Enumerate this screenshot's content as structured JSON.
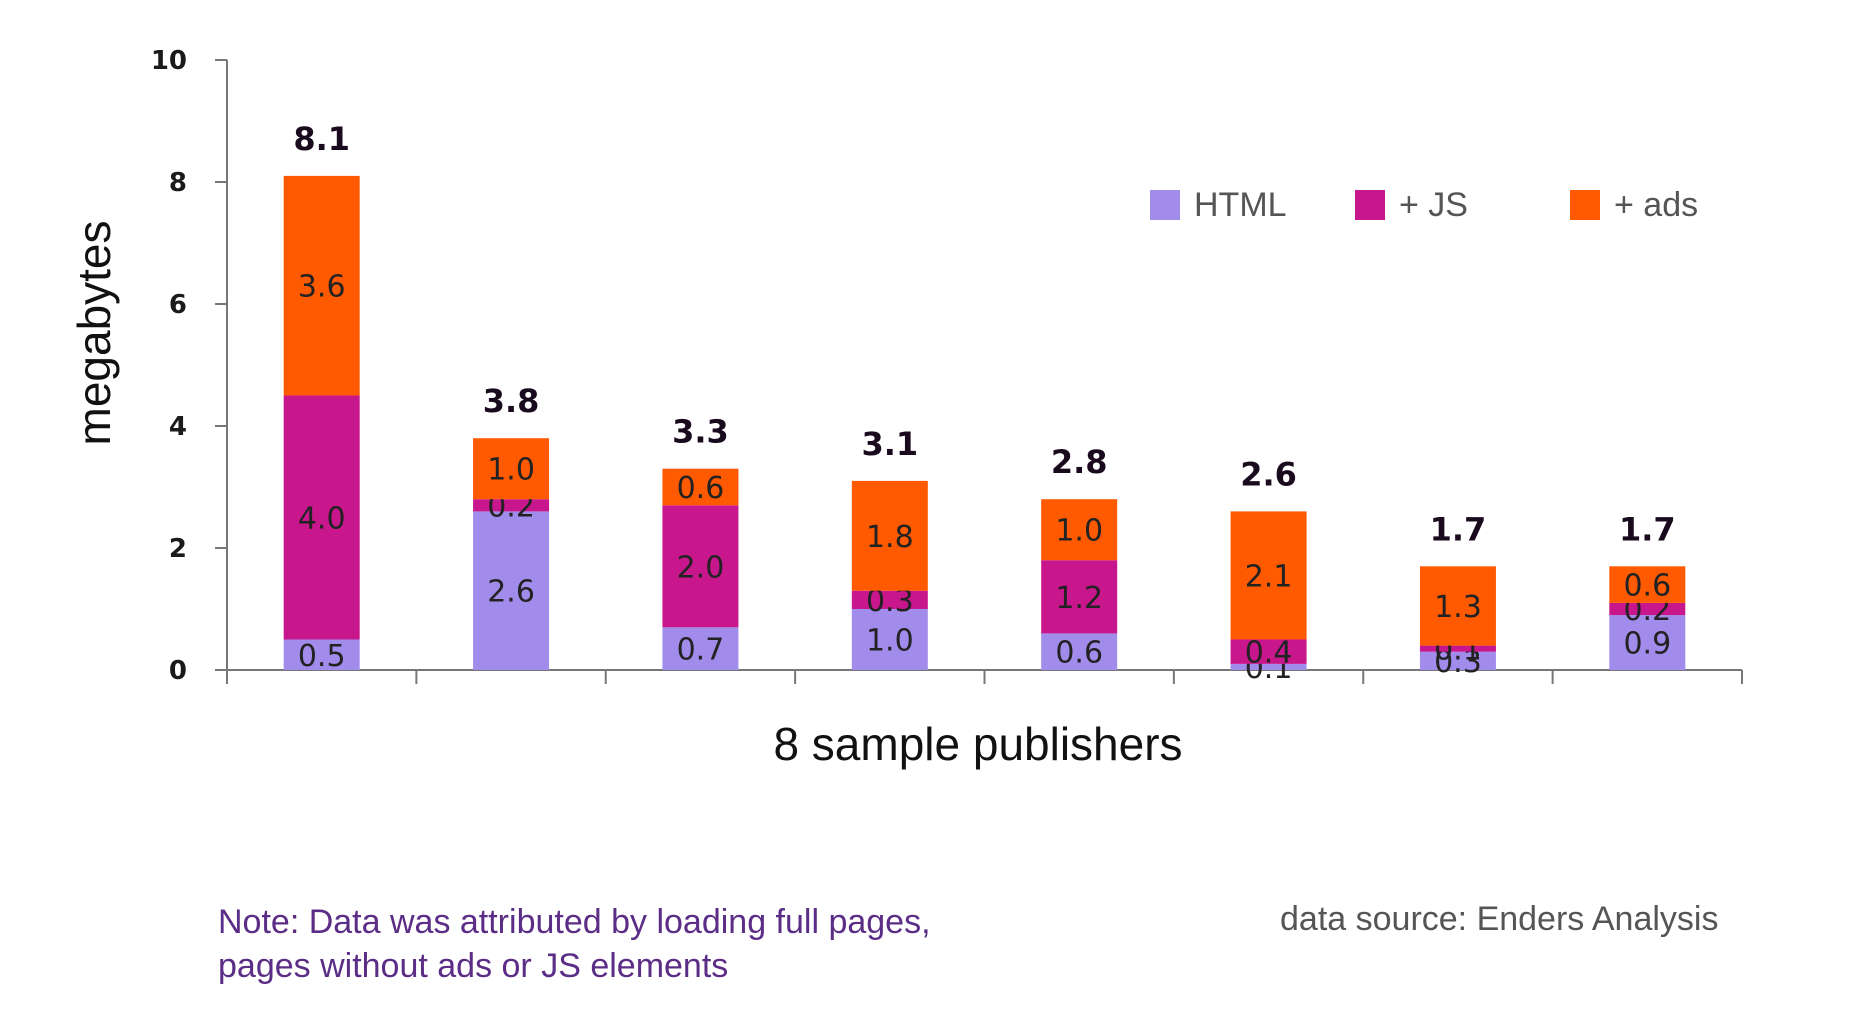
{
  "chart_data": {
    "type": "bar",
    "stacked": true,
    "xlabel": "8 sample publishers",
    "ylabel": "megabytes",
    "ylim": [
      0,
      10
    ],
    "yticks": [
      "0",
      "2",
      "4",
      "6",
      "8",
      "10"
    ],
    "legend_position": "top-right",
    "categories": [
      "",
      "",
      "",
      "",
      "",
      "",
      "",
      ""
    ],
    "totals": [
      "8.1",
      "3.8",
      "3.3",
      "3.1",
      "2.8",
      "2.6",
      "1.7",
      "1.7"
    ],
    "series": [
      {
        "name": "HTML",
        "color": "#a18ceb",
        "values": [
          0.5,
          2.6,
          0.7,
          1.0,
          0.6,
          0.1,
          0.3,
          0.9
        ],
        "labels": [
          "0.5",
          "2.6",
          "0.7",
          "1.0",
          "0.6",
          "0.1",
          "0.3",
          "0.9"
        ]
      },
      {
        "name": "+ JS",
        "color": "#c8168c",
        "values": [
          4.0,
          0.2,
          2.0,
          0.3,
          1.2,
          0.4,
          0.1,
          0.2
        ],
        "labels": [
          "4.0",
          "0.2",
          "2.0",
          "0.3",
          "1.2",
          "0.4",
          "0.1",
          "0.2"
        ]
      },
      {
        "name": "+ ads",
        "color": "#ff5a00",
        "values": [
          3.6,
          1.0,
          0.6,
          1.8,
          1.0,
          2.1,
          1.3,
          0.6
        ],
        "labels": [
          "3.6",
          "1.0",
          "0.6",
          "1.8",
          "1.0",
          "2.1",
          "1.3",
          "0.6"
        ]
      }
    ]
  },
  "note": "Note: Data was attributed by loading full pages, pages without ads or JS elements",
  "source": "data source: Enders Analysis"
}
